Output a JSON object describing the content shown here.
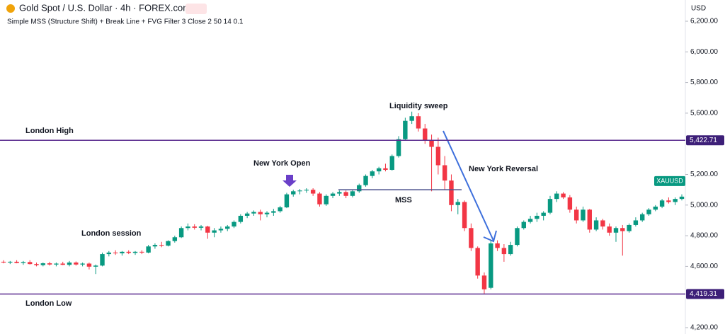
{
  "chart_data": {
    "type": "candlestick",
    "title": "Gold Spot / U.S. Dollar · 4h · FOREX.com",
    "subtitle": "Simple MSS (Structure Shift) + Break Line + FVG Filter 3 Close 2 50 14 0.1",
    "currency": "USD",
    "symbol": "XAUUSD",
    "up_color": "#089981",
    "down_color": "#f23645",
    "ylim": [
      4200,
      6200
    ],
    "yticks": [
      {
        "value": 4200,
        "label": "4,200.00"
      },
      {
        "value": 4600,
        "label": "4,600.00"
      },
      {
        "value": 4800,
        "label": "4,800.00"
      },
      {
        "value": 5000,
        "label": "5,000.00"
      },
      {
        "value": 5200,
        "label": "5,200.00"
      },
      {
        "value": 5600,
        "label": "5,600.00"
      },
      {
        "value": 5800,
        "label": "5,800.00"
      },
      {
        "value": 6000,
        "label": "6,000.00"
      },
      {
        "value": 6200,
        "label": "6,200.00"
      }
    ],
    "levels": [
      {
        "value": 5422.71,
        "label": "5,422.71",
        "name": "London High",
        "color": "#5b2c8f"
      },
      {
        "value": 4419.31,
        "label": "4,419.31",
        "name": "London Low",
        "color": "#5b2c8f"
      }
    ],
    "break_line": {
      "value": 5100,
      "name": "MSS"
    },
    "annotations": [
      "London session",
      "New York Open",
      "Liquidity sweep",
      "New York Reversal"
    ],
    "ohlc": [
      [
        4630,
        4640,
        4620,
        4625
      ],
      [
        4625,
        4635,
        4615,
        4630
      ],
      [
        4630,
        4640,
        4620,
        4622
      ],
      [
        4622,
        4635,
        4610,
        4628
      ],
      [
        4628,
        4640,
        4612,
        4615
      ],
      [
        4615,
        4625,
        4600,
        4608
      ],
      [
        4608,
        4625,
        4600,
        4620
      ],
      [
        4620,
        4630,
        4605,
        4612
      ],
      [
        4612,
        4625,
        4600,
        4618
      ],
      [
        4618,
        4630,
        4608,
        4610
      ],
      [
        4610,
        4635,
        4600,
        4625
      ],
      [
        4625,
        4632,
        4605,
        4612
      ],
      [
        4612,
        4625,
        4600,
        4618
      ],
      [
        4618,
        4625,
        4580,
        4598
      ],
      [
        4598,
        4612,
        4550,
        4605
      ],
      [
        4605,
        4690,
        4600,
        4680
      ],
      [
        4680,
        4700,
        4665,
        4690
      ],
      [
        4690,
        4705,
        4675,
        4685
      ],
      [
        4685,
        4700,
        4670,
        4695
      ],
      [
        4695,
        4705,
        4680,
        4688
      ],
      [
        4688,
        4700,
        4675,
        4695
      ],
      [
        4695,
        4705,
        4680,
        4690
      ],
      [
        4690,
        4740,
        4685,
        4730
      ],
      [
        4730,
        4750,
        4715,
        4740
      ],
      [
        4740,
        4760,
        4725,
        4735
      ],
      [
        4735,
        4770,
        4730,
        4765
      ],
      [
        4765,
        4800,
        4755,
        4790
      ],
      [
        4790,
        4860,
        4785,
        4850
      ],
      [
        4850,
        4880,
        4835,
        4860
      ],
      [
        4860,
        4875,
        4840,
        4852
      ],
      [
        4852,
        4870,
        4835,
        4860
      ],
      [
        4860,
        4865,
        4780,
        4820
      ],
      [
        4820,
        4850,
        4790,
        4835
      ],
      [
        4835,
        4860,
        4820,
        4845
      ],
      [
        4845,
        4870,
        4830,
        4860
      ],
      [
        4860,
        4900,
        4850,
        4890
      ],
      [
        4890,
        4940,
        4880,
        4930
      ],
      [
        4930,
        4955,
        4915,
        4945
      ],
      [
        4945,
        4965,
        4930,
        4955
      ],
      [
        4955,
        4970,
        4900,
        4940
      ],
      [
        4940,
        4960,
        4920,
        4950
      ],
      [
        4950,
        4975,
        4930,
        4960
      ],
      [
        4960,
        4995,
        4950,
        4985
      ],
      [
        4985,
        5080,
        4980,
        5070
      ],
      [
        5070,
        5100,
        5055,
        5090
      ],
      [
        5090,
        5105,
        5070,
        5095
      ],
      [
        5095,
        5110,
        5080,
        5100
      ],
      [
        5100,
        5110,
        5060,
        5075
      ],
      [
        5075,
        5085,
        4990,
        5005
      ],
      [
        5005,
        5070,
        4995,
        5060
      ],
      [
        5060,
        5085,
        5045,
        5075
      ],
      [
        5075,
        5095,
        5060,
        5085
      ],
      [
        5085,
        5095,
        5045,
        5060
      ],
      [
        5060,
        5100,
        5050,
        5090
      ],
      [
        5090,
        5140,
        5080,
        5130
      ],
      [
        5130,
        5200,
        5120,
        5190
      ],
      [
        5190,
        5230,
        5175,
        5220
      ],
      [
        5220,
        5250,
        5200,
        5240
      ],
      [
        5240,
        5270,
        5220,
        5230
      ],
      [
        5230,
        5330,
        5225,
        5320
      ],
      [
        5320,
        5450,
        5310,
        5430
      ],
      [
        5430,
        5570,
        5420,
        5550
      ],
      [
        5550,
        5610,
        5530,
        5580
      ],
      [
        5580,
        5600,
        5480,
        5500
      ],
      [
        5500,
        5530,
        5400,
        5420
      ],
      [
        5420,
        5460,
        5090,
        5380
      ],
      [
        5380,
        5440,
        5200,
        5260
      ],
      [
        5260,
        5320,
        5100,
        5160
      ],
      [
        5160,
        5200,
        4960,
        5000
      ],
      [
        5000,
        5040,
        4940,
        5020
      ],
      [
        5020,
        5030,
        4830,
        4850
      ],
      [
        4850,
        4880,
        4700,
        4720
      ],
      [
        4720,
        4730,
        4520,
        4540
      ],
      [
        4540,
        4560,
        4419.31,
        4450
      ],
      [
        4460,
        4770,
        4450,
        4750
      ],
      [
        4750,
        4770,
        4700,
        4720
      ],
      [
        4720,
        4745,
        4630,
        4680
      ],
      [
        4680,
        4760,
        4670,
        4740
      ],
      [
        4740,
        4860,
        4730,
        4850
      ],
      [
        4850,
        4900,
        4840,
        4890
      ],
      [
        4890,
        4930,
        4880,
        4910
      ],
      [
        4910,
        4950,
        4890,
        4930
      ],
      [
        4930,
        4960,
        4900,
        4950
      ],
      [
        4950,
        5060,
        4940,
        5040
      ],
      [
        5040,
        5090,
        5020,
        5075
      ],
      [
        5075,
        5085,
        5040,
        5050
      ],
      [
        5050,
        5065,
        4950,
        4970
      ],
      [
        4970,
        4990,
        4880,
        4900
      ],
      [
        4900,
        4990,
        4890,
        4970
      ],
      [
        4970,
        4975,
        4820,
        4840
      ],
      [
        4840,
        4920,
        4830,
        4900
      ],
      [
        4900,
        4910,
        4840,
        4860
      ],
      [
        4860,
        4880,
        4800,
        4820
      ],
      [
        4820,
        4860,
        4760,
        4850
      ],
      [
        4850,
        4870,
        4670,
        4830
      ],
      [
        4830,
        4880,
        4820,
        4870
      ],
      [
        4870,
        4920,
        4860,
        4900
      ],
      [
        4900,
        4950,
        4890,
        4940
      ],
      [
        4940,
        4980,
        4930,
        4970
      ],
      [
        4970,
        5000,
        4960,
        4990
      ],
      [
        4990,
        5040,
        4980,
        5030
      ],
      [
        5030,
        5050,
        5010,
        5020
      ],
      [
        5020,
        5050,
        5000,
        5040
      ],
      [
        5040,
        5070,
        5030,
        5055
      ]
    ]
  }
}
